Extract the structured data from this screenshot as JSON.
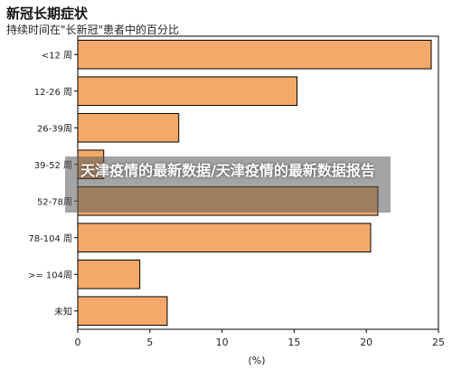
{
  "chart_data": {
    "type": "bar",
    "orientation": "horizontal",
    "title": "新冠长期症状",
    "subtitle": "持续时间在\"长新冠\"患者中的百分比",
    "xlabel": "(%)",
    "ylabel": "",
    "xlim": [
      0,
      25
    ],
    "x_ticks": [
      "0",
      "5",
      "10",
      "15",
      "20",
      "25"
    ],
    "categories": [
      "<12 周",
      "12-26 周",
      "26-39周",
      "39-52 周",
      "52-78周",
      "78-104 周",
      ">= 104周",
      "未知"
    ],
    "values": [
      24.5,
      15.2,
      7.0,
      1.8,
      20.8,
      20.3,
      4.3,
      6.2
    ],
    "bar_color": "#F4A96B",
    "bar_edge_color": "#000000",
    "grid": false
  },
  "watermark": {
    "text": "天津疫情的最新数据/天津疫情的最新数据报告"
  }
}
